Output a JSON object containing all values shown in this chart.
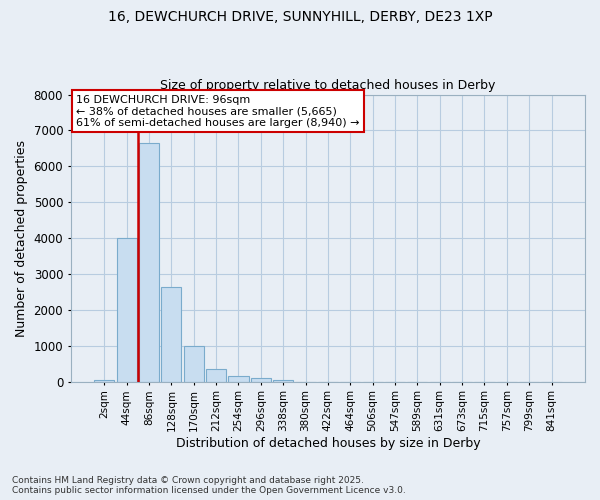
{
  "title_line1": "16, DEWCHURCH DRIVE, SUNNYHILL, DERBY, DE23 1XP",
  "title_line2": "Size of property relative to detached houses in Derby",
  "xlabel": "Distribution of detached houses by size in Derby",
  "ylabel": "Number of detached properties",
  "categories": [
    "2sqm",
    "44sqm",
    "86sqm",
    "128sqm",
    "170sqm",
    "212sqm",
    "254sqm",
    "296sqm",
    "338sqm",
    "380sqm",
    "422sqm",
    "464sqm",
    "506sqm",
    "547sqm",
    "589sqm",
    "631sqm",
    "673sqm",
    "715sqm",
    "757sqm",
    "799sqm",
    "841sqm"
  ],
  "values": [
    50,
    4000,
    6650,
    2650,
    1000,
    350,
    150,
    100,
    50,
    0,
    0,
    0,
    0,
    0,
    0,
    0,
    0,
    0,
    0,
    0,
    0
  ],
  "bar_color": "#c8ddf0",
  "bar_edge_color": "#7aabcc",
  "grid_color": "#b8cce0",
  "vline_color": "#cc0000",
  "annotation_text": "16 DEWCHURCH DRIVE: 96sqm\n← 38% of detached houses are smaller (5,665)\n61% of semi-detached houses are larger (8,940) →",
  "annotation_box_color": "#cc0000",
  "ylim": [
    0,
    8000
  ],
  "yticks": [
    0,
    1000,
    2000,
    3000,
    4000,
    5000,
    6000,
    7000,
    8000
  ],
  "footer_line1": "Contains HM Land Registry data © Crown copyright and database right 2025.",
  "footer_line2": "Contains public sector information licensed under the Open Government Licence v3.0.",
  "bg_color": "#e8eef5",
  "plot_bg_color": "#e8eef5"
}
